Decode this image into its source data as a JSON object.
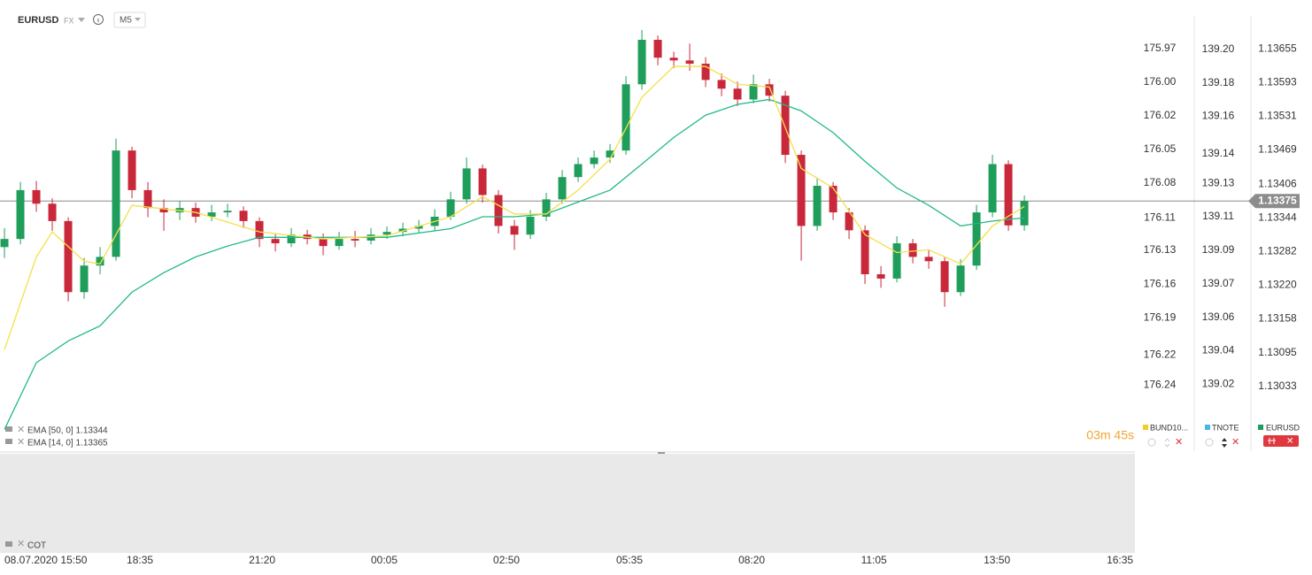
{
  "header": {
    "symbol": "EURUSD",
    "market": "FX",
    "interval": "M5"
  },
  "chart_data": {
    "type": "candlestick",
    "up_color": "#1f9d5b",
    "down_color": "#c8283a",
    "series": [
      {
        "name": "EURUSD",
        "color": "#1f9d5b",
        "ohlc": [
          [
            1.1329,
            1.13325,
            1.1327,
            1.13305
          ],
          [
            1.13305,
            1.1341,
            1.13295,
            1.13395
          ],
          [
            1.13395,
            1.13412,
            1.13355,
            1.1337
          ],
          [
            1.1337,
            1.1338,
            1.1332,
            1.13338
          ],
          [
            1.13338,
            1.13345,
            1.1319,
            1.13207
          ],
          [
            1.13207,
            1.1327,
            1.13195,
            1.13256
          ],
          [
            1.13256,
            1.1329,
            1.1324,
            1.13272
          ],
          [
            1.13272,
            1.1349,
            1.13265,
            1.13468
          ],
          [
            1.13468,
            1.13475,
            1.1338,
            1.13395
          ],
          [
            1.13395,
            1.1341,
            1.13345,
            1.13362
          ],
          [
            1.13362,
            1.13378,
            1.1332,
            1.13354
          ],
          [
            1.13354,
            1.13375,
            1.1334,
            1.13362
          ],
          [
            1.13362,
            1.13372,
            1.13335,
            1.13346
          ],
          [
            1.13346,
            1.13368,
            1.13338,
            1.13354
          ],
          [
            1.13354,
            1.1337,
            1.13345,
            1.13357
          ],
          [
            1.13357,
            1.13365,
            1.13325,
            1.13338
          ],
          [
            1.13338,
            1.13345,
            1.1329,
            1.13305
          ],
          [
            1.13305,
            1.13315,
            1.13282,
            1.13297
          ],
          [
            1.13297,
            1.13325,
            1.1329,
            1.13313
          ],
          [
            1.13313,
            1.13322,
            1.13295,
            1.13305
          ],
          [
            1.13305,
            1.13315,
            1.13275,
            1.13292
          ],
          [
            1.13292,
            1.13318,
            1.13285,
            1.13305
          ],
          [
            1.13305,
            1.1332,
            1.1329,
            1.13302
          ],
          [
            1.13302,
            1.13325,
            1.13295,
            1.13313
          ],
          [
            1.13313,
            1.13328,
            1.13305,
            1.13318
          ],
          [
            1.13318,
            1.13335,
            1.1331,
            1.13324
          ],
          [
            1.13324,
            1.1334,
            1.13315,
            1.13329
          ],
          [
            1.13329,
            1.1336,
            1.1332,
            1.13346
          ],
          [
            1.13346,
            1.13392,
            1.1334,
            1.13378
          ],
          [
            1.13378,
            1.13455,
            1.1337,
            1.13435
          ],
          [
            1.13435,
            1.13442,
            1.13372,
            1.13386
          ],
          [
            1.13386,
            1.13395,
            1.13315,
            1.13329
          ],
          [
            1.13329,
            1.1334,
            1.13285,
            1.13313
          ],
          [
            1.13313,
            1.13358,
            1.13305,
            1.13346
          ],
          [
            1.13346,
            1.1339,
            1.13338,
            1.13378
          ],
          [
            1.13378,
            1.13432,
            1.1337,
            1.13419
          ],
          [
            1.13419,
            1.13455,
            1.1341,
            1.13443
          ],
          [
            1.13443,
            1.13468,
            1.13435,
            1.13455
          ],
          [
            1.13455,
            1.1348,
            1.13445,
            1.13468
          ],
          [
            1.13468,
            1.13605,
            1.1346,
            1.1359
          ],
          [
            1.1359,
            1.1369,
            1.1358,
            1.13672
          ],
          [
            1.13672,
            1.1368,
            1.13625,
            1.13639
          ],
          [
            1.13639,
            1.1365,
            1.1362,
            1.13634
          ],
          [
            1.13634,
            1.13665,
            1.13615,
            1.13628
          ],
          [
            1.13628,
            1.1364,
            1.13585,
            1.13598
          ],
          [
            1.13598,
            1.1361,
            1.13568,
            1.13582
          ],
          [
            1.13582,
            1.13595,
            1.1355,
            1.13562
          ],
          [
            1.13562,
            1.13608,
            1.13555,
            1.1359
          ],
          [
            1.1359,
            1.136,
            1.13558,
            1.13569
          ],
          [
            1.13569,
            1.13578,
            1.13445,
            1.1346
          ],
          [
            1.1346,
            1.13468,
            1.13265,
            1.13329
          ],
          [
            1.13329,
            1.13418,
            1.1332,
            1.13403
          ],
          [
            1.13403,
            1.1341,
            1.1334,
            1.13354
          ],
          [
            1.13354,
            1.13362,
            1.13305,
            1.13321
          ],
          [
            1.13321,
            1.1333,
            1.13222,
            1.1324
          ],
          [
            1.1324,
            1.13255,
            1.13215,
            1.13232
          ],
          [
            1.13232,
            1.1331,
            1.13225,
            1.13297
          ],
          [
            1.13297,
            1.13305,
            1.1326,
            1.13272
          ],
          [
            1.13272,
            1.13285,
            1.1325,
            1.13264
          ],
          [
            1.13264,
            1.13272,
            1.1318,
            1.13207
          ],
          [
            1.13207,
            1.13268,
            1.132,
            1.13256
          ],
          [
            1.13256,
            1.13368,
            1.13248,
            1.13354
          ],
          [
            1.13354,
            1.1346,
            1.13345,
            1.13443
          ],
          [
            1.13443,
            1.1345,
            1.1332,
            1.1333
          ],
          [
            1.1333,
            1.13385,
            1.1332,
            1.13375
          ]
        ]
      }
    ],
    "overlays": [
      {
        "name": "EMA [50, 0] 1.13344",
        "color": "#21b987",
        "x": [
          0,
          2,
          4,
          6,
          8,
          10,
          12,
          14,
          16,
          20,
          24,
          28,
          30,
          32,
          34,
          36,
          38,
          40,
          42,
          44,
          46,
          48,
          50,
          52,
          54,
          56,
          58,
          60,
          62,
          64
        ],
        "values": [
          1.12954,
          1.13077,
          1.13117,
          1.13145,
          1.13207,
          1.13243,
          1.13272,
          1.13292,
          1.13308,
          1.13308,
          1.13308,
          1.13324,
          1.13346,
          1.13346,
          1.13351,
          1.13373,
          1.13395,
          1.13443,
          1.13492,
          1.13533,
          1.13553,
          1.13562,
          1.13541,
          1.13501,
          1.13448,
          1.13399,
          1.13367,
          1.13329,
          1.13338,
          1.13344
        ]
      },
      {
        "name": "EMA [14, 0] 1.13365",
        "color": "#f3e04b",
        "x": [
          0,
          2,
          3,
          5,
          6,
          8,
          12,
          16,
          20,
          24,
          28,
          30,
          32,
          34,
          36,
          38,
          40,
          42,
          44,
          46,
          48,
          50,
          52,
          54,
          56,
          58,
          60,
          62,
          64
        ],
        "values": [
          1.13101,
          1.13272,
          1.13318,
          1.13264,
          1.13259,
          1.13367,
          1.13354,
          1.13318,
          1.13305,
          1.13311,
          1.13346,
          1.13383,
          1.13351,
          1.13351,
          1.13395,
          1.13452,
          1.13566,
          1.13623,
          1.13623,
          1.1359,
          1.13585,
          1.13435,
          1.13399,
          1.13313,
          1.1328,
          1.13285,
          1.13259,
          1.13329,
          1.13365
        ]
      }
    ],
    "current_price": 1.13375,
    "xlim": [
      -0.28,
      70.94
    ],
    "xticks": [
      {
        "value": 0.83,
        "label": "08.07.2020 15:50"
      },
      {
        "value": 8.5,
        "label": "18:35"
      },
      {
        "value": 16.17,
        "label": "21:20"
      },
      {
        "value": 23.83,
        "label": "00:05"
      },
      {
        "value": 31.5,
        "label": "02:50"
      },
      {
        "value": 39.22,
        "label": "05:35"
      },
      {
        "value": 46.89,
        "label": "08:20"
      },
      {
        "value": 54.56,
        "label": "11:05"
      },
      {
        "value": 62.28,
        "label": "13:50"
      },
      {
        "value": 70,
        "label": "16:35"
      }
    ],
    "ylim": [
      1.12914,
      1.13716
    ],
    "yticks": [
      1.13655,
      1.13593,
      1.13531,
      1.13469,
      1.13406,
      1.13344,
      1.13282,
      {
        "value": 1.1322,
        "label": "1.13220"
      },
      1.13158,
      1.13095,
      1.13033
    ],
    "extra_axes": [
      {
        "name": "BUND10...",
        "color": "#f2cf1f",
        "lim": [
          176.293,
          175.944
        ],
        "ticks": [
          {
            "value": 175.97,
            "label": "175.97"
          },
          {
            "value": 175.997,
            "label": "176.00"
          },
          {
            "value": 176.024,
            "label": "176.02"
          },
          {
            "value": 176.051,
            "label": "176.05"
          },
          {
            "value": 176.078,
            "label": "176.08"
          },
          {
            "value": 176.106,
            "label": "176.11"
          },
          {
            "value": 176.132,
            "label": "176.13"
          },
          {
            "value": 176.159,
            "label": "176.16"
          },
          {
            "value": 176.186,
            "label": "176.19"
          },
          {
            "value": 176.216,
            "label": "176.22"
          },
          {
            "value": 176.24,
            "label": "176.24"
          }
        ]
      },
      {
        "name": "TNOTE",
        "color": "#45b7e8",
        "lim": [
          138.984,
          139.218
        ],
        "ticks": [
          {
            "value": 139.2,
            "label": "139.20"
          },
          {
            "value": 139.182,
            "label": "139.18"
          },
          {
            "value": 139.164,
            "label": "139.16"
          },
          {
            "value": 139.144,
            "label": "139.14"
          },
          {
            "value": 139.128,
            "label": "139.13"
          },
          {
            "value": 139.11,
            "label": "139.11"
          },
          {
            "value": 139.092,
            "label": "139.09"
          },
          {
            "value": 139.074,
            "label": "139.07"
          },
          {
            "value": 139.056,
            "label": "139.06"
          },
          {
            "value": 139.038,
            "label": "139.04"
          },
          {
            "value": 139.02,
            "label": "139.02"
          }
        ]
      }
    ],
    "timer": "03m 45s",
    "lower_pane": "COT"
  }
}
